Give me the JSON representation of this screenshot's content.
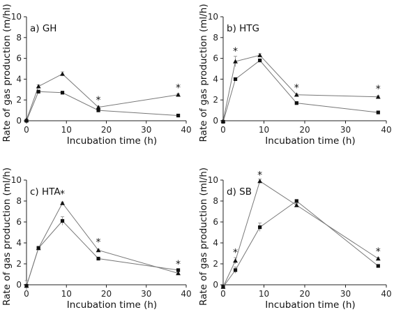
{
  "chart_data": [
    {
      "type": "line",
      "panel_label": "a) GH",
      "xlabel": "Incubation time (h)",
      "ylabel": "Rate of gas production (m/hl)",
      "xlim": [
        0,
        40
      ],
      "ylim": [
        0,
        10
      ],
      "xticks": [
        0,
        10,
        20,
        30,
        40
      ],
      "yticks": [
        0,
        2,
        4,
        6,
        8,
        10
      ],
      "x": [
        0,
        3,
        9,
        18,
        38
      ],
      "series": [
        {
          "marker": "triangle",
          "values": [
            0.1,
            3.3,
            4.5,
            1.3,
            2.5
          ],
          "errors": [
            0,
            0.15,
            0.2,
            0.1,
            0.1
          ]
        },
        {
          "marker": "square",
          "values": [
            0.0,
            2.8,
            2.7,
            1.0,
            0.5
          ],
          "errors": [
            0,
            0.1,
            0.1,
            0.05,
            0.05
          ]
        }
      ],
      "significance": [
        {
          "x": 18,
          "y": 2.0,
          "label": "*"
        },
        {
          "x": 38,
          "y": 3.2,
          "label": "*"
        }
      ]
    },
    {
      "type": "line",
      "panel_label": "b) HTG",
      "xlabel": "Incubation time (h)",
      "ylabel": "Rate of gas production (ml/h)",
      "xlim": [
        0,
        40
      ],
      "ylim": [
        0,
        10
      ],
      "xticks": [
        0,
        10,
        20,
        30,
        40
      ],
      "yticks": [
        0,
        2,
        4,
        6,
        8,
        10
      ],
      "x": [
        0,
        3,
        9,
        18,
        38
      ],
      "series": [
        {
          "marker": "triangle",
          "values": [
            0.0,
            5.7,
            6.3,
            2.5,
            2.3
          ],
          "errors": [
            0,
            0.5,
            0.15,
            0.1,
            0.1
          ]
        },
        {
          "marker": "square",
          "values": [
            -0.1,
            4.0,
            5.8,
            1.7,
            0.8
          ],
          "errors": [
            0,
            0.1,
            0.15,
            0.1,
            0.05
          ]
        }
      ],
      "significance": [
        {
          "x": 3,
          "y": 6.7,
          "label": "*"
        },
        {
          "x": 18,
          "y": 3.2,
          "label": "*"
        },
        {
          "x": 38,
          "y": 3.1,
          "label": "*"
        }
      ]
    },
    {
      "type": "line",
      "panel_label": "c) HTA",
      "xlabel": "Incubation time (h)",
      "ylabel": "Rate of gas production (ml/h)",
      "xlim": [
        0,
        40
      ],
      "ylim": [
        0,
        10
      ],
      "xticks": [
        0,
        10,
        20,
        30,
        40
      ],
      "yticks": [
        0,
        2,
        4,
        6,
        8,
        10
      ],
      "x": [
        0,
        3,
        9,
        18,
        38
      ],
      "series": [
        {
          "marker": "triangle",
          "values": [
            -0.1,
            3.5,
            7.8,
            3.3,
            1.1
          ],
          "errors": [
            0.5,
            0.15,
            0.1,
            0.1,
            0.15
          ]
        },
        {
          "marker": "square",
          "values": [
            -0.1,
            3.5,
            6.1,
            2.5,
            1.4
          ],
          "errors": [
            0,
            0.2,
            0.4,
            0.1,
            0.1
          ]
        }
      ],
      "significance": [
        {
          "x": 9,
          "y": 8.7,
          "label": "*"
        },
        {
          "x": 18,
          "y": 4.1,
          "label": "*"
        },
        {
          "x": 38,
          "y": 2.0,
          "label": "*"
        }
      ]
    },
    {
      "type": "line",
      "panel_label": "d) SB",
      "xlabel": "Incubation time (h)",
      "ylabel": "Rate of gas production (ml/h)",
      "xlim": [
        0,
        40
      ],
      "ylim": [
        0,
        10
      ],
      "xticks": [
        0,
        10,
        20,
        30,
        40
      ],
      "yticks": [
        0,
        2,
        4,
        6,
        8,
        10
      ],
      "x": [
        0,
        3,
        9,
        18,
        38
      ],
      "series": [
        {
          "marker": "triangle",
          "values": [
            -0.2,
            2.3,
            9.9,
            7.6,
            2.5
          ],
          "errors": [
            0,
            0.3,
            0.2,
            0.15,
            0.1
          ]
        },
        {
          "marker": "square",
          "values": [
            -0.2,
            1.4,
            5.5,
            8.0,
            1.8
          ],
          "errors": [
            0,
            0.3,
            0.4,
            0.1,
            0.1
          ]
        }
      ],
      "significance": [
        {
          "x": 3,
          "y": 3.1,
          "label": "*"
        },
        {
          "x": 9,
          "y": 10.5,
          "label": "*"
        },
        {
          "x": 38,
          "y": 3.2,
          "label": "*"
        }
      ]
    }
  ]
}
